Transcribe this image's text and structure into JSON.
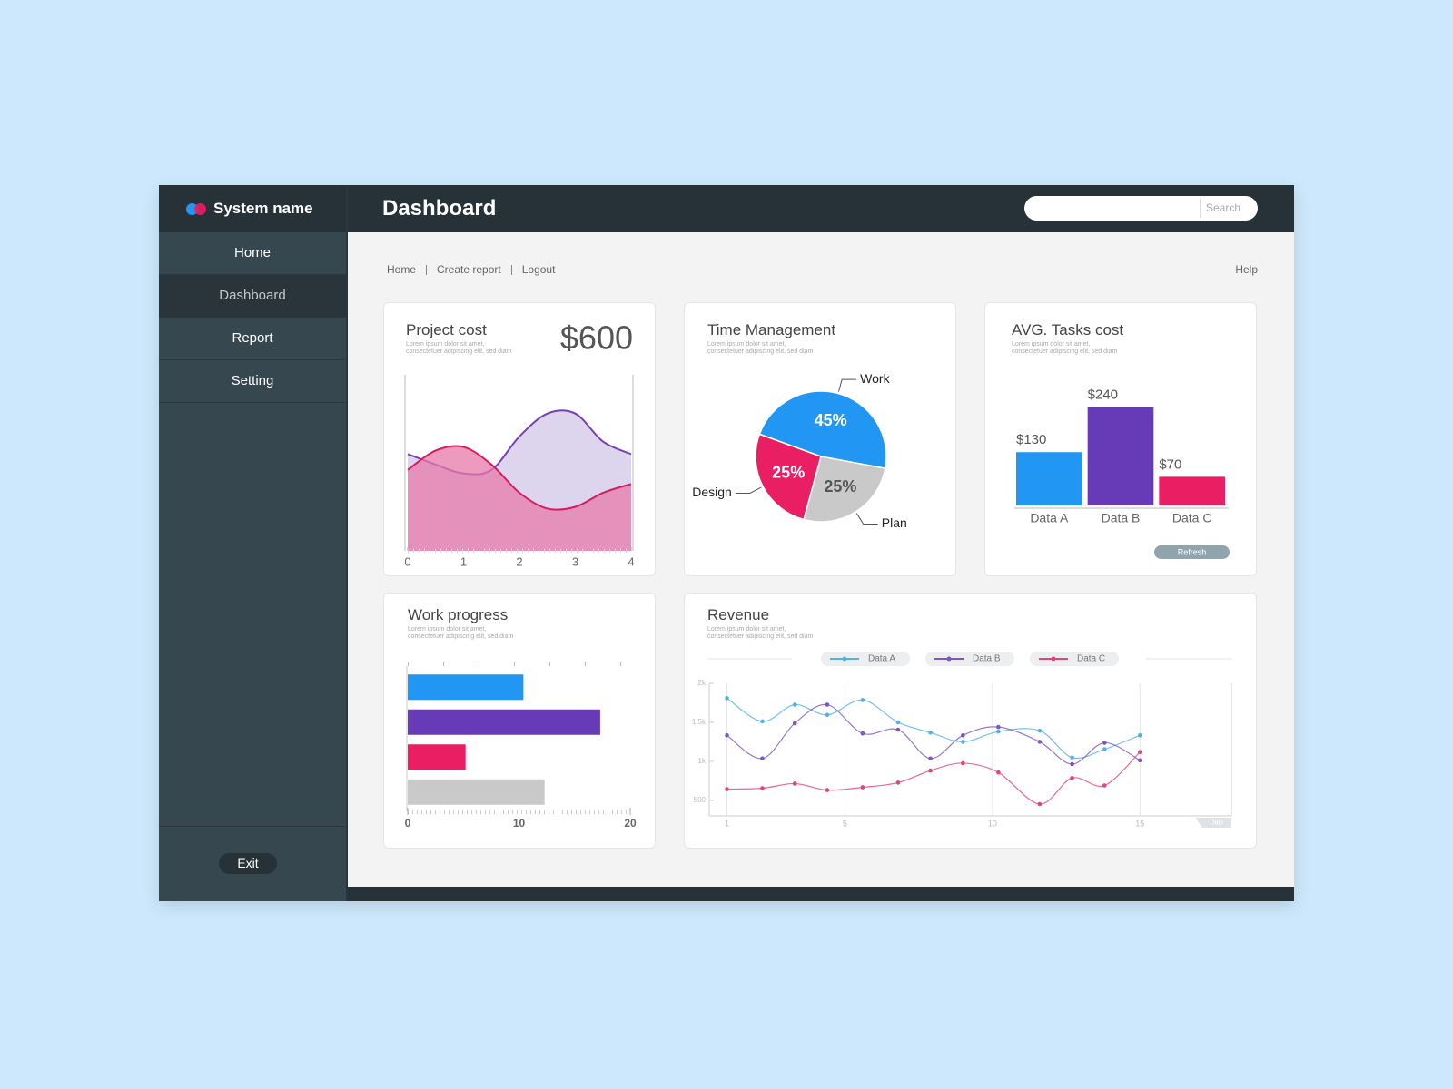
{
  "sidebar": {
    "brand": "System name",
    "menu": [
      "Home",
      "Dashboard",
      "Report",
      "Setting"
    ],
    "exit": "Exit"
  },
  "header": {
    "title": "Dashboard",
    "search": "Search"
  },
  "breadcrumbs": [
    "Home",
    "Create report",
    "Logout"
  ],
  "help": "Help",
  "chart_data": [
    {
      "type": "area",
      "title": "Project cost",
      "subtitle": "Lorem ipsum dolor sit amet, consectetuer adipiscing elit, sed diam",
      "headline": "$600",
      "x": [
        0,
        0.5,
        1,
        1.5,
        2,
        2.5,
        3,
        3.5,
        4
      ],
      "xlim": [
        0,
        4
      ],
      "xticks": [
        0,
        1,
        2,
        3,
        4
      ],
      "ylim": [
        0,
        100
      ],
      "series": [
        {
          "color": "#7b3fb5",
          "fill": "#ddd5ee",
          "values": [
            55,
            49,
            44,
            46,
            65,
            78,
            78,
            62,
            55
          ]
        },
        {
          "color": "#d81b60",
          "fill": "#e57aa9",
          "values": [
            46,
            57,
            59,
            49,
            33,
            24,
            25,
            33,
            38
          ]
        }
      ]
    },
    {
      "type": "pie",
      "title": "Time Management",
      "subtitle": "Lorem ipsum dolor sit amet, consectetuer adipiscing elit, sed diam",
      "categories": [
        "Work",
        "Plan",
        "Design"
      ],
      "values": [
        45,
        25,
        25
      ],
      "value_labels": [
        "45%",
        "25%",
        "25%"
      ],
      "colors": [
        "#2196f3",
        "#c9c9c9",
        "#e91e63"
      ]
    },
    {
      "type": "bar",
      "title": "AVG. Tasks cost",
      "subtitle": "Lorem ipsum dolor sit amet, consectetuer adipiscing elit, sed diam",
      "categories": [
        "Data A",
        "Data B",
        "Data C"
      ],
      "values": [
        130,
        240,
        70
      ],
      "value_labels": [
        "$130",
        "$240",
        "$70"
      ],
      "colors": [
        "#2196f3",
        "#673ab7",
        "#e91e63"
      ],
      "ylim": [
        0,
        250
      ],
      "button": "Refresh"
    },
    {
      "type": "hbar",
      "title": "Work progress",
      "subtitle": "Lorem ipsum dolor sit amet, consectetuer adipiscing elit, sed diam",
      "values": [
        10.4,
        17.3,
        5.2,
        12.3
      ],
      "colors": [
        "#2196f3",
        "#673ab7",
        "#e91e63",
        "#c9c9c9"
      ],
      "xlim": [
        0,
        20
      ],
      "xticks": [
        0,
        10,
        20
      ]
    },
    {
      "type": "line",
      "title": "Revenue",
      "subtitle": "Lorem ipsum dolor sit amet, consectetuer adipiscing elit, sed diam",
      "xlabel": "Date",
      "x": [
        1,
        2.2,
        3.3,
        4.4,
        5.6,
        6.8,
        7.9,
        9,
        10.2,
        11.6,
        12.7,
        13.8,
        15
      ],
      "xlim": [
        0.4,
        18.1
      ],
      "xticks": [
        1,
        5,
        10,
        15
      ],
      "ylim": [
        300,
        2000
      ],
      "yticks": [
        500,
        {
          "value": 1000,
          "label": "1k"
        },
        {
          "value": 1500,
          "label": "1.5k"
        },
        {
          "value": 2000,
          "label": "2k"
        }
      ],
      "series": [
        {
          "name": "Data A",
          "color": "#4fb3e8",
          "values": [
            1810,
            1512,
            1726,
            1595,
            1786,
            1500,
            1369,
            1250,
            1381,
            1393,
            1048,
            1155,
            1333
          ]
        },
        {
          "name": "Data B",
          "color": "#7e57c2",
          "values": [
            1333,
            1036,
            1488,
            1726,
            1357,
            1405,
            1036,
            1333,
            1440,
            1250,
            964,
            1238,
            1012
          ]
        },
        {
          "name": "Data C",
          "color": "#e0457b",
          "values": [
            643,
            655,
            714,
            631,
            667,
            726,
            881,
            976,
            857,
            452,
            786,
            690,
            1119
          ]
        }
      ]
    }
  ]
}
